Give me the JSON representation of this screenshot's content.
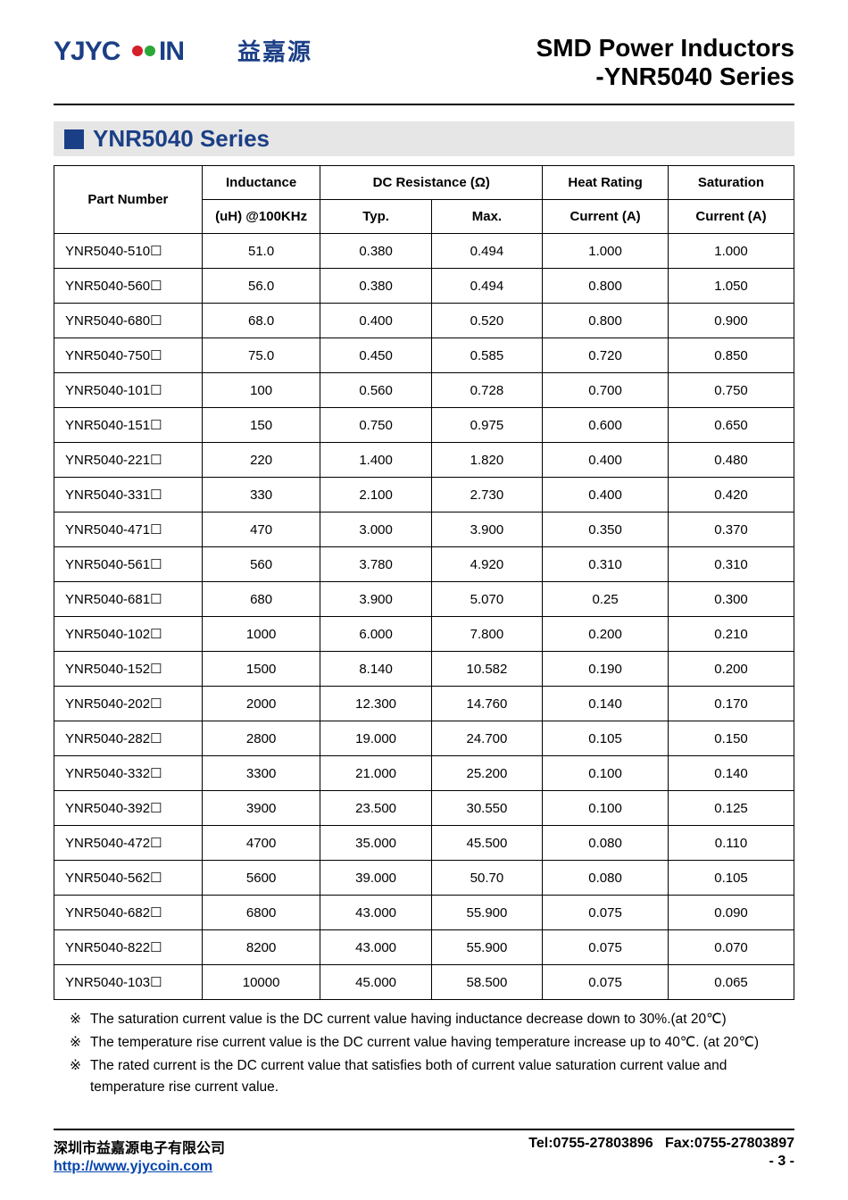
{
  "header": {
    "logo_text_cn": "益嘉源",
    "title_line1": "SMD Power Inductors",
    "title_line2": "-YNR5040 Series"
  },
  "section": {
    "title": "YNR5040 Series"
  },
  "table": {
    "headers": {
      "part_number": "Part Number",
      "inductance_top": "Inductance",
      "inductance_sub": "(uH) @100KHz",
      "dcr": "DC Resistance (Ω)",
      "dcr_typ": "Typ.",
      "dcr_max": "Max.",
      "heat_top": "Heat Rating",
      "heat_sub": "Current (A)",
      "sat_top": "Saturation",
      "sat_sub": "Current (A)"
    },
    "suffix_glyph": "☐",
    "rows": [
      {
        "pn": "YNR5040-510",
        "ind": "51.0",
        "typ": "0.380",
        "max": "0.494",
        "heat": "1.000",
        "sat": "1.000"
      },
      {
        "pn": "YNR5040-560",
        "ind": "56.0",
        "typ": "0.380",
        "max": "0.494",
        "heat": "0.800",
        "sat": "1.050"
      },
      {
        "pn": "YNR5040-680",
        "ind": "68.0",
        "typ": "0.400",
        "max": "0.520",
        "heat": "0.800",
        "sat": "0.900"
      },
      {
        "pn": "YNR5040-750",
        "ind": "75.0",
        "typ": "0.450",
        "max": "0.585",
        "heat": "0.720",
        "sat": "0.850"
      },
      {
        "pn": "YNR5040-101",
        "ind": "100",
        "typ": "0.560",
        "max": "0.728",
        "heat": "0.700",
        "sat": "0.750"
      },
      {
        "pn": "YNR5040-151",
        "ind": "150",
        "typ": "0.750",
        "max": "0.975",
        "heat": "0.600",
        "sat": "0.650"
      },
      {
        "pn": "YNR5040-221",
        "ind": "220",
        "typ": "1.400",
        "max": "1.820",
        "heat": "0.400",
        "sat": "0.480"
      },
      {
        "pn": "YNR5040-331",
        "ind": "330",
        "typ": "2.100",
        "max": "2.730",
        "heat": "0.400",
        "sat": "0.420"
      },
      {
        "pn": "YNR5040-471",
        "ind": "470",
        "typ": "3.000",
        "max": "3.900",
        "heat": "0.350",
        "sat": "0.370"
      },
      {
        "pn": "YNR5040-561",
        "ind": "560",
        "typ": "3.780",
        "max": "4.920",
        "heat": "0.310",
        "sat": "0.310"
      },
      {
        "pn": "YNR5040-681",
        "ind": "680",
        "typ": "3.900",
        "max": "5.070",
        "heat": "0.25",
        "sat": "0.300"
      },
      {
        "pn": "YNR5040-102",
        "ind": "1000",
        "typ": "6.000",
        "max": "7.800",
        "heat": "0.200",
        "sat": "0.210"
      },
      {
        "pn": "YNR5040-152",
        "ind": "1500",
        "typ": "8.140",
        "max": "10.582",
        "heat": "0.190",
        "sat": "0.200"
      },
      {
        "pn": "YNR5040-202",
        "ind": "2000",
        "typ": "12.300",
        "max": "14.760",
        "heat": "0.140",
        "sat": "0.170"
      },
      {
        "pn": "YNR5040-282",
        "ind": "2800",
        "typ": "19.000",
        "max": "24.700",
        "heat": "0.105",
        "sat": "0.150"
      },
      {
        "pn": "YNR5040-332",
        "ind": "3300",
        "typ": "21.000",
        "max": "25.200",
        "heat": "0.100",
        "sat": "0.140"
      },
      {
        "pn": "YNR5040-392",
        "ind": "3900",
        "typ": "23.500",
        "max": "30.550",
        "heat": "0.100",
        "sat": "0.125"
      },
      {
        "pn": "YNR5040-472",
        "ind": "4700",
        "typ": "35.000",
        "max": "45.500",
        "heat": "0.080",
        "sat": "0.110"
      },
      {
        "pn": "YNR5040-562",
        "ind": "5600",
        "typ": "39.000",
        "max": "50.70",
        "heat": "0.080",
        "sat": "0.105"
      },
      {
        "pn": "YNR5040-682",
        "ind": "6800",
        "typ": "43.000",
        "max": "55.900",
        "heat": "0.075",
        "sat": "0.090"
      },
      {
        "pn": "YNR5040-822",
        "ind": "8200",
        "typ": "43.000",
        "max": "55.900",
        "heat": "0.075",
        "sat": "0.070"
      },
      {
        "pn": "YNR5040-103",
        "ind": "10000",
        "typ": "45.000",
        "max": "58.500",
        "heat": "0.075",
        "sat": "0.065"
      }
    ],
    "col_widths": [
      "20%",
      "16%",
      "15%",
      "15%",
      "17%",
      "17%"
    ]
  },
  "notes": {
    "symbol": "※",
    "items": [
      "The saturation current value is the DC current value having inductance decrease down to 30%.(at 20℃)",
      "The temperature rise current value is the DC current value having temperature increase up to 40℃. (at 20℃)",
      "The rated current is the DC current value that satisfies both of current value saturation current value and temperature rise current value."
    ]
  },
  "footer": {
    "company_cn": "深圳市益嘉源电子有限公司",
    "url": "http://www.yjycoin.com",
    "tel_label": "Tel:",
    "tel": "0755-27803896",
    "fax_label": "Fax:",
    "fax": "0755-27803897",
    "page": "- 3 -"
  },
  "style": {
    "accent_color": "#1b3f86",
    "section_bg": "#e6e6e6",
    "border_color": "#000000",
    "link_color": "#0645ad"
  }
}
